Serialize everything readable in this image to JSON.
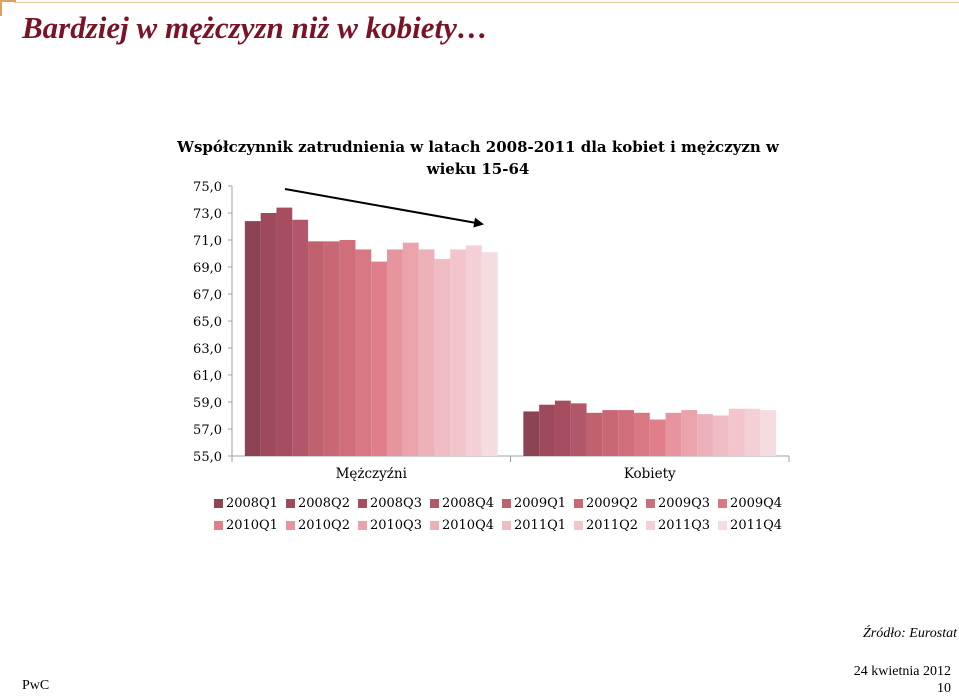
{
  "slide": {
    "title": "Bardziej w mężczyzn niż w kobiety…",
    "source": "Źródło: Eurostat",
    "date": "24 kwietnia 2012",
    "page_number": "10",
    "brand": "PwC"
  },
  "chart_data": {
    "type": "bar",
    "title": "Współczynnik zatrudnienia w latach 2008-2011 dla kobiet i mężczyzn w wieku 15-64",
    "title_lines": [
      "Współczynnik zatrudnienia w latach 2008-2011 dla kobiet i mężczyzn w",
      "wieku 15-64"
    ],
    "categories": [
      "Mężczyźni",
      "Kobiety"
    ],
    "ylim": [
      55,
      75
    ],
    "yticks": [
      "75,0",
      "73,0",
      "71,0",
      "69,0",
      "67,0",
      "65,0",
      "63,0",
      "61,0",
      "59,0",
      "57,0",
      "55,0"
    ],
    "ytick_values": [
      75,
      73,
      71,
      69,
      67,
      65,
      63,
      61,
      59,
      57,
      55
    ],
    "grid": false,
    "legend_position": "bottom",
    "series": [
      {
        "name": "2008Q1",
        "color": "#8b4453",
        "values": [
          72.4,
          58.3
        ]
      },
      {
        "name": "2008Q2",
        "color": "#9c4a5c",
        "values": [
          73.0,
          58.8
        ]
      },
      {
        "name": "2008Q3",
        "color": "#a64d60",
        "values": [
          73.4,
          59.1
        ]
      },
      {
        "name": "2008Q4",
        "color": "#b2566a",
        "values": [
          72.5,
          58.9
        ]
      },
      {
        "name": "2009Q1",
        "color": "#c0616f",
        "values": [
          70.9,
          58.2
        ]
      },
      {
        "name": "2009Q2",
        "color": "#c86876",
        "values": [
          70.9,
          58.4
        ]
      },
      {
        "name": "2009Q3",
        "color": "#d06d7b",
        "values": [
          71.0,
          58.4
        ]
      },
      {
        "name": "2009Q4",
        "color": "#d87885",
        "values": [
          70.3,
          58.2
        ]
      },
      {
        "name": "2010Q1",
        "color": "#e07e8b",
        "values": [
          69.4,
          57.7
        ]
      },
      {
        "name": "2010Q2",
        "color": "#e6949e",
        "values": [
          70.3,
          58.2
        ]
      },
      {
        "name": "2010Q3",
        "color": "#eaa2ab",
        "values": [
          70.8,
          58.4
        ]
      },
      {
        "name": "2010Q4",
        "color": "#ecb0b8",
        "values": [
          70.3,
          58.1
        ]
      },
      {
        "name": "2011Q1",
        "color": "#efbcc3",
        "values": [
          69.6,
          58.0
        ]
      },
      {
        "name": "2011Q2",
        "color": "#f1c5cb",
        "values": [
          70.3,
          58.5
        ]
      },
      {
        "name": "2011Q3",
        "color": "#f3d0d5",
        "values": [
          70.6,
          58.5
        ]
      },
      {
        "name": "2011Q4",
        "color": "#f5dce0",
        "values": [
          70.1,
          58.4
        ]
      }
    ]
  }
}
